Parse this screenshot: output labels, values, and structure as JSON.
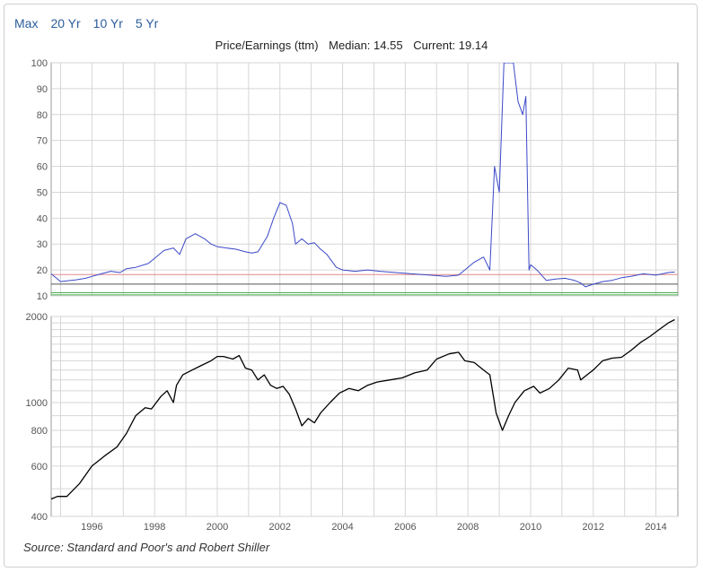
{
  "range_tabs": [
    {
      "label": "Max"
    },
    {
      "label": "20 Yr"
    },
    {
      "label": "10 Yr"
    },
    {
      "label": "5 Yr"
    }
  ],
  "title": {
    "metric": "Price/Earnings (ttm)",
    "median": "Median: 14.55",
    "current": "Current: 19.14"
  },
  "source": "Source: Standard and Poor's and Robert Shiller",
  "chart_data": [
    {
      "type": "line",
      "xlim": [
        1994.7,
        2014.7
      ],
      "ylim": [
        10,
        100
      ],
      "y_ticks": [
        10,
        20,
        30,
        40,
        50,
        60,
        70,
        80,
        90,
        100
      ],
      "grid": true,
      "reference_lines": [
        {
          "value": 18.2,
          "color": "#e08a8a"
        },
        {
          "value": 14.55,
          "color": "#555555"
        },
        {
          "value": 11.2,
          "color": "#4caf50"
        },
        {
          "value": 10.4,
          "color": "#4caf50"
        }
      ],
      "series": [
        {
          "color": "#3a48c8",
          "x": [
            1994.7,
            1995.0,
            1995.2,
            1995.5,
            1995.8,
            1996.0,
            1996.3,
            1996.6,
            1996.9,
            1997.1,
            1997.4,
            1997.8,
            1998.0,
            1998.3,
            1998.6,
            1998.8,
            1999.0,
            1999.3,
            1999.6,
            1999.8,
            2000.0,
            2000.3,
            2000.6,
            2000.9,
            2001.1,
            2001.3,
            2001.6,
            2001.8,
            2002.0,
            2002.2,
            2002.4,
            2002.5,
            2002.7,
            2002.9,
            2003.1,
            2003.3,
            2003.5,
            2003.8,
            2004.0,
            2004.4,
            2004.8,
            2005.2,
            2005.7,
            2006.2,
            2006.8,
            2007.3,
            2007.7,
            2007.9,
            2008.2,
            2008.5,
            2008.7,
            2008.85,
            2009.0,
            2009.15,
            2009.3,
            2009.45,
            2009.6,
            2009.75,
            2009.85,
            2009.95,
            2010.0,
            2010.2,
            2010.5,
            2010.8,
            2011.1,
            2011.4,
            2011.6,
            2011.75,
            2012.0,
            2012.3,
            2012.6,
            2012.9,
            2013.2,
            2013.6,
            2014.0,
            2014.4,
            2014.6
          ],
          "y": [
            18.5,
            15.5,
            15.8,
            16.2,
            16.8,
            17.5,
            18.5,
            19.5,
            19.0,
            20.5,
            21.0,
            22.5,
            24.5,
            27.5,
            28.5,
            26.0,
            32.0,
            34.0,
            32.0,
            30.0,
            29.0,
            28.5,
            28.0,
            27.0,
            26.5,
            27.0,
            33.0,
            40.0,
            46.0,
            45.0,
            38.0,
            30.0,
            32.0,
            30.0,
            30.5,
            28.0,
            26.0,
            21.0,
            20.0,
            19.5,
            20.0,
            19.5,
            19.0,
            18.5,
            18.0,
            17.5,
            18.0,
            20.0,
            23.0,
            25.0,
            20.0,
            60.0,
            50.0,
            100.0,
            100.0,
            100.0,
            85.0,
            80.0,
            87.0,
            20.0,
            22.0,
            20.0,
            16.0,
            16.5,
            16.8,
            16.0,
            15.0,
            13.5,
            14.5,
            15.5,
            16.0,
            17.0,
            17.5,
            18.5,
            18.0,
            19.0,
            19.2
          ]
        }
      ]
    },
    {
      "type": "line",
      "xlim": [
        1994.7,
        2014.7
      ],
      "ylim": [
        400,
        2000
      ],
      "y_scale": "log",
      "y_ticks": [
        400,
        600,
        800,
        1000,
        2000
      ],
      "x_ticks": [
        1996,
        1998,
        2000,
        2002,
        2004,
        2006,
        2008,
        2010,
        2012,
        2014
      ],
      "grid": true,
      "series": [
        {
          "color": "#000000",
          "x": [
            1994.7,
            1994.9,
            1995.2,
            1995.6,
            1996.0,
            1996.4,
            1996.8,
            1997.1,
            1997.4,
            1997.7,
            1997.9,
            1998.2,
            1998.4,
            1998.6,
            1998.7,
            1998.9,
            1999.2,
            1999.5,
            1999.8,
            2000.0,
            2000.2,
            2000.5,
            2000.7,
            2000.9,
            2001.1,
            2001.3,
            2001.5,
            2001.7,
            2001.9,
            2002.1,
            2002.3,
            2002.5,
            2002.7,
            2002.9,
            2003.1,
            2003.3,
            2003.6,
            2003.9,
            2004.2,
            2004.5,
            2004.8,
            2005.1,
            2005.5,
            2005.9,
            2006.3,
            2006.7,
            2007.0,
            2007.4,
            2007.7,
            2007.9,
            2008.2,
            2008.5,
            2008.7,
            2008.9,
            2009.1,
            2009.3,
            2009.5,
            2009.8,
            2010.1,
            2010.3,
            2010.6,
            2010.9,
            2011.2,
            2011.5,
            2011.6,
            2011.8,
            2012.0,
            2012.3,
            2012.6,
            2012.9,
            2013.2,
            2013.5,
            2013.8,
            2014.1,
            2014.4,
            2014.6
          ],
          "y": [
            460,
            470,
            470,
            520,
            600,
            650,
            700,
            780,
            900,
            960,
            950,
            1050,
            1100,
            1000,
            1150,
            1250,
            1300,
            1350,
            1400,
            1450,
            1450,
            1420,
            1460,
            1320,
            1300,
            1200,
            1250,
            1150,
            1120,
            1140,
            1070,
            950,
            830,
            880,
            850,
            920,
            1000,
            1080,
            1120,
            1100,
            1150,
            1180,
            1200,
            1220,
            1270,
            1300,
            1420,
            1480,
            1500,
            1400,
            1380,
            1300,
            1250,
            920,
            800,
            900,
            1000,
            1100,
            1140,
            1080,
            1120,
            1200,
            1320,
            1300,
            1200,
            1250,
            1300,
            1400,
            1430,
            1440,
            1520,
            1620,
            1700,
            1800,
            1900,
            1950
          ]
        }
      ]
    }
  ]
}
